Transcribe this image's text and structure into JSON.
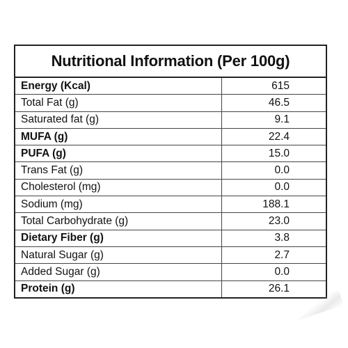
{
  "title": "Nutritional Information (Per 100g)",
  "rows": [
    {
      "label": "Energy (Kcal)",
      "value": "615",
      "bold": true
    },
    {
      "label": "Total Fat (g)",
      "value": "46.5",
      "bold": false
    },
    {
      "label": "Saturated fat (g)",
      "value": "9.1",
      "bold": false
    },
    {
      "label": "MUFA (g)",
      "value": "22.4",
      "bold": true
    },
    {
      "label": "PUFA (g)",
      "value": "15.0",
      "bold": true
    },
    {
      "label": "Trans Fat (g)",
      "value": "0.0",
      "bold": false
    },
    {
      "label": "Cholesterol (mg)",
      "value": "0.0",
      "bold": false
    },
    {
      "label": "Sodium (mg)",
      "value": "188.1",
      "bold": false
    },
    {
      "label": "Total Carbohydrate (g)",
      "value": "23.0",
      "bold": false
    },
    {
      "label": "Dietary Fiber (g)",
      "value": "3.8",
      "bold": true
    },
    {
      "label": "Natural Sugar (g)",
      "value": "2.7",
      "bold": false
    },
    {
      "label": "Added Sugar (g)",
      "value": "0.0",
      "bold": false
    },
    {
      "label": "Protein (g)",
      "value": "26.1",
      "bold": true
    }
  ],
  "colors": {
    "border": "#222222",
    "text": "#111111",
    "background": "#ffffff"
  }
}
